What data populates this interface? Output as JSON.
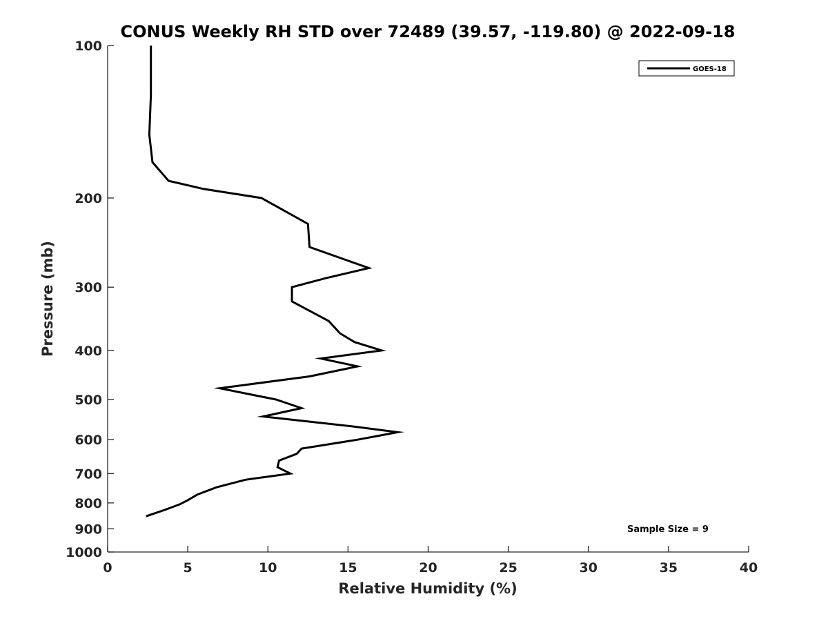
{
  "chart_data": {
    "type": "line",
    "title": "CONUS Weekly RH STD over 72489 (39.57, -119.80) @ 2022-09-18",
    "xlabel": "Relative Humidity (%)",
    "ylabel": "Pressure (mb)",
    "xlim": [
      0,
      40
    ],
    "ylim": [
      100,
      1000
    ],
    "y_scale": "log",
    "y_reversed": true,
    "x_ticks": [
      "0",
      "5",
      "10",
      "15",
      "20",
      "25",
      "30",
      "35",
      "40"
    ],
    "y_ticks": [
      "100",
      "200",
      "300",
      "400",
      "500",
      "600",
      "700",
      "800",
      "900",
      "1000"
    ],
    "grid": false,
    "legend_position": "top-right",
    "series": [
      {
        "name": "GOES-18",
        "color": "#000000",
        "points": [
          {
            "x": 2.7,
            "y": 100
          },
          {
            "x": 2.7,
            "y": 125
          },
          {
            "x": 2.6,
            "y": 150
          },
          {
            "x": 2.8,
            "y": 170
          },
          {
            "x": 3.8,
            "y": 185
          },
          {
            "x": 6.0,
            "y": 192
          },
          {
            "x": 9.6,
            "y": 200
          },
          {
            "x": 12.5,
            "y": 225
          },
          {
            "x": 12.6,
            "y": 250
          },
          {
            "x": 16.3,
            "y": 275
          },
          {
            "x": 13.6,
            "y": 288
          },
          {
            "x": 11.5,
            "y": 300
          },
          {
            "x": 11.5,
            "y": 320
          },
          {
            "x": 13.8,
            "y": 350
          },
          {
            "x": 14.5,
            "y": 370
          },
          {
            "x": 15.4,
            "y": 385
          },
          {
            "x": 17.1,
            "y": 400
          },
          {
            "x": 13.3,
            "y": 415
          },
          {
            "x": 15.6,
            "y": 430
          },
          {
            "x": 12.6,
            "y": 450
          },
          {
            "x": 7.0,
            "y": 475
          },
          {
            "x": 10.5,
            "y": 500
          },
          {
            "x": 12.1,
            "y": 520
          },
          {
            "x": 9.7,
            "y": 540
          },
          {
            "x": 15.3,
            "y": 565
          },
          {
            "x": 18.1,
            "y": 580
          },
          {
            "x": 15.6,
            "y": 600
          },
          {
            "x": 12.1,
            "y": 625
          },
          {
            "x": 11.8,
            "y": 640
          },
          {
            "x": 10.7,
            "y": 660
          },
          {
            "x": 10.6,
            "y": 680
          },
          {
            "x": 11.4,
            "y": 700
          },
          {
            "x": 8.6,
            "y": 720
          },
          {
            "x": 6.8,
            "y": 745
          },
          {
            "x": 5.6,
            "y": 770
          },
          {
            "x": 5.0,
            "y": 790
          },
          {
            "x": 4.5,
            "y": 805
          },
          {
            "x": 3.6,
            "y": 825
          },
          {
            "x": 2.4,
            "y": 850
          }
        ]
      }
    ],
    "annotation": "Sample Size = 9"
  }
}
